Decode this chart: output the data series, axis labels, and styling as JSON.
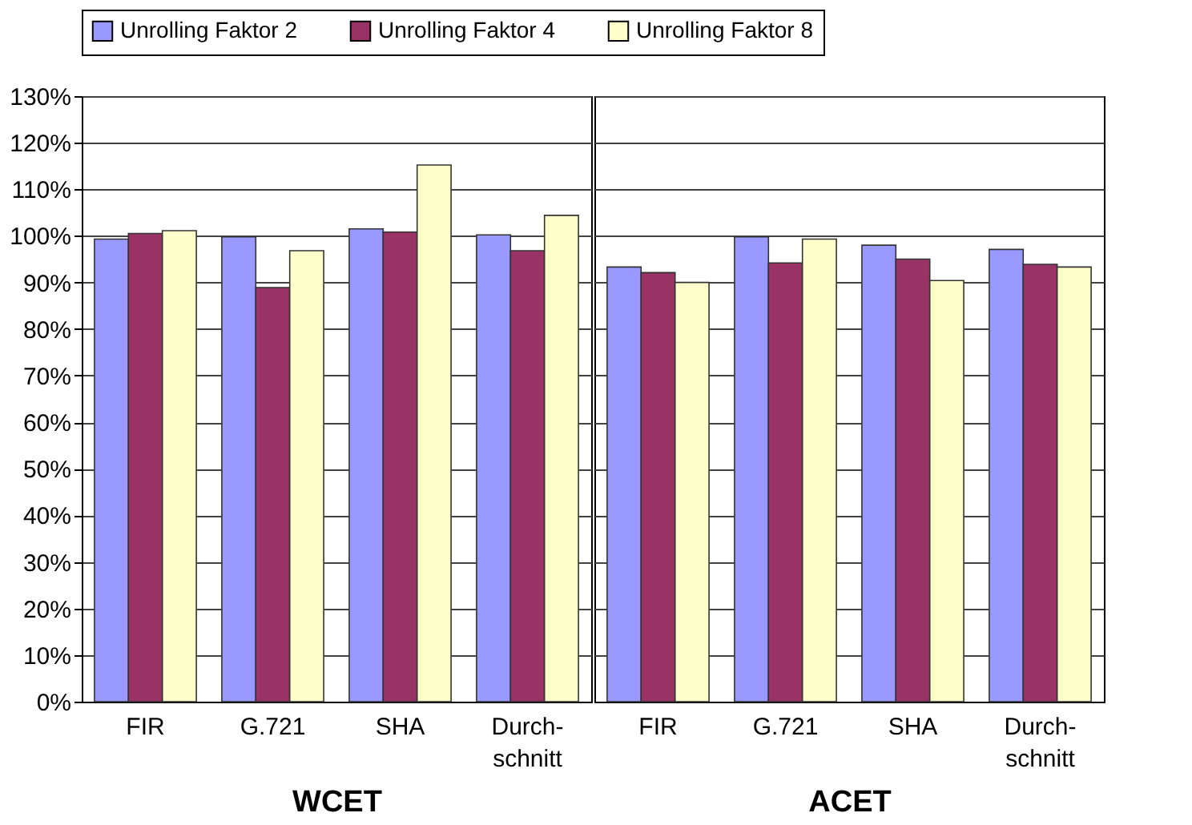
{
  "chart_data": [
    {
      "type": "bar",
      "xlabel": "WCET",
      "categories": [
        "FIR",
        "G.721",
        "SHA",
        "Durch-\nschnitt"
      ],
      "series": [
        {
          "name": "Unrolling Faktor 2",
          "color": "#9999ff",
          "values": [
            99.3,
            99.8,
            101.5,
            100.2
          ]
        },
        {
          "name": "Unrolling Faktor 4",
          "color": "#993366",
          "values": [
            100.5,
            88.9,
            100.8,
            96.8
          ]
        },
        {
          "name": "Unrolling Faktor 8",
          "color": "#ffffcc",
          "values": [
            101.1,
            96.8,
            115.2,
            104.4
          ]
        }
      ],
      "ylim": [
        0,
        130
      ],
      "yticks": [
        {
          "value": 0,
          "label": "0%"
        },
        {
          "value": 10,
          "label": "10%"
        },
        {
          "value": 20,
          "label": "20%"
        },
        {
          "value": 30,
          "label": "30%"
        },
        {
          "value": 40,
          "label": "40%"
        },
        {
          "value": 50,
          "label": "50%"
        },
        {
          "value": 60,
          "label": "60%"
        },
        {
          "value": 70,
          "label": "70%"
        },
        {
          "value": 80,
          "label": "80%"
        },
        {
          "value": 90,
          "label": "90%"
        },
        {
          "value": 100,
          "label": "100%"
        },
        {
          "value": 110,
          "label": "110%"
        },
        {
          "value": 120,
          "label": "120%"
        },
        {
          "value": 130,
          "label": "130%"
        }
      ],
      "grid": "y",
      "legend": "top"
    },
    {
      "type": "bar",
      "xlabel": "ACET",
      "categories": [
        "FIR",
        "G.721",
        "SHA",
        "Durch-\nschnitt"
      ],
      "series": [
        {
          "name": "Unrolling Faktor 2",
          "color": "#9999ff",
          "values": [
            93.3,
            99.8,
            98.0,
            97.1
          ]
        },
        {
          "name": "Unrolling Faktor 4",
          "color": "#993366",
          "values": [
            92.1,
            94.2,
            95.0,
            93.9
          ]
        },
        {
          "name": "Unrolling Faktor 8",
          "color": "#ffffcc",
          "values": [
            90.0,
            99.3,
            90.4,
            93.3
          ]
        }
      ],
      "ylim": [
        0,
        130
      ],
      "yticks": [
        0,
        10,
        20,
        30,
        40,
        50,
        60,
        70,
        80,
        90,
        100,
        110,
        120,
        130
      ],
      "grid": "y",
      "tick_labels": "x",
      "legend": "top"
    }
  ]
}
